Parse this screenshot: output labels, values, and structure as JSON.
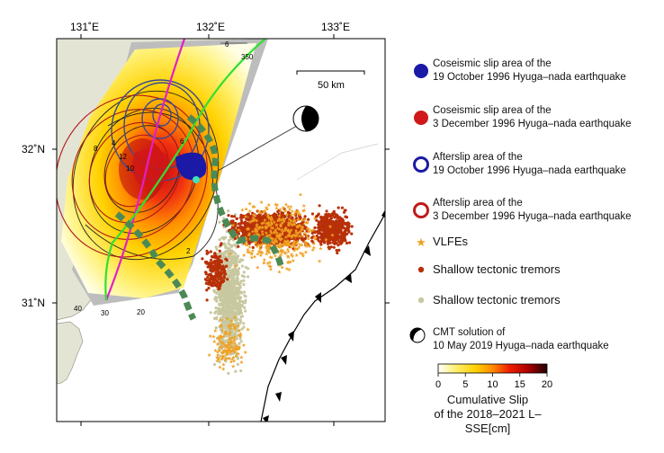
{
  "axes": {
    "lon_labels": [
      "131˚E",
      "132˚E",
      "133˚E"
    ],
    "lat_labels": [
      "32˚N",
      "31˚N"
    ]
  },
  "scalebar": {
    "label": "50 km"
  },
  "contour_labels": [
    "6",
    "350",
    "8",
    "6",
    "4",
    "12",
    "10",
    "2",
    "40",
    "30",
    "20"
  ],
  "colorbar": {
    "ticks": [
      "0",
      "5",
      "10",
      "15",
      "20"
    ],
    "min": 0,
    "max": 20,
    "title_line1": "Cumulative Slip",
    "title_line2": "of the 2018–2021 L–SSE[cm]",
    "colors": [
      "#ffffff",
      "#fff176",
      "#ffd000",
      "#ff8a00",
      "#f02000",
      "#b00000",
      "#200000"
    ]
  },
  "legend": {
    "coseismic_1019_l1": "Coseismic slip area of the",
    "coseismic_1019_l2": "19 October 1996 Hyuga–nada earthquake",
    "coseismic_1203_l1": "Coseismic slip area of the",
    "coseismic_1203_l2": "3 December 1996 Hyuga–nada earthquake",
    "afterslip_1019_l1": "Afterslip area of the",
    "afterslip_1019_l2": "19 October 1996 Hyuga–nada earthquake",
    "afterslip_1203_l1": "Afterslip area of the",
    "afterslip_1203_l2": "3 December 1996 Hyuga–nada earthquake",
    "vlfe": "VLFEs",
    "tremor_a": "Shallow tectonic tremors",
    "tremor_b": "Shallow tectonic tremors",
    "cmt_l1": "CMT solution of",
    "cmt_l2": "10 May 2019 Hyuga–nada earthquake"
  },
  "colors": {
    "coseismic_1019": "#1a1aa6",
    "coseismic_1203": "#d01818",
    "afterslip_1019": "#1a1aa6",
    "afterslip_1203": "#c01a1a",
    "vlfe": "#f0a020",
    "tremor_a": "#b83008",
    "tremor_b": "#c8c8a0",
    "land": "#e4e4d4",
    "slab_contour_magenta": "#e020c8",
    "slab_contour_green": "#30e030",
    "tremor_path": "#4c8a55"
  }
}
